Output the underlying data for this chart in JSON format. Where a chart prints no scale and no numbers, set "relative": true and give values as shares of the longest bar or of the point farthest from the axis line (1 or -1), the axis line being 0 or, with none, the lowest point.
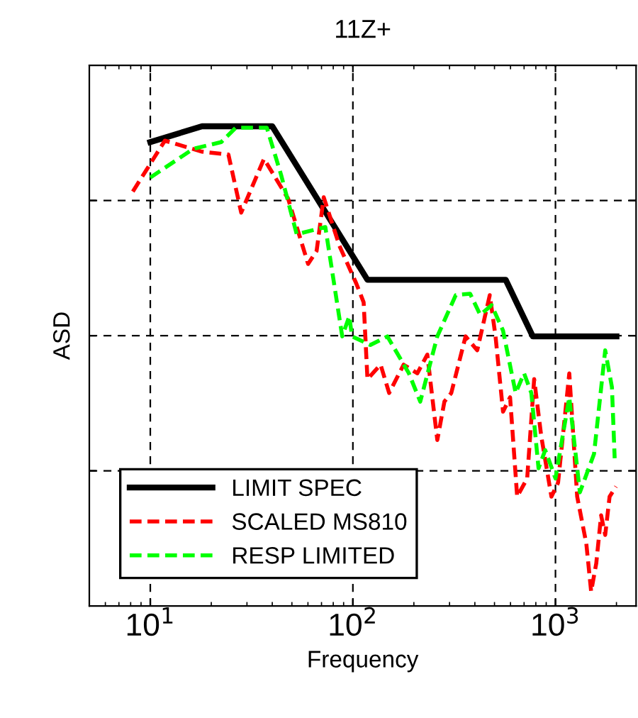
{
  "chart_data": {
    "type": "line",
    "title": "11Z+",
    "xlabel": "Frequency",
    "ylabel": "ASD",
    "relative": true,
    "log": "x",
    "xlim": [
      5,
      2500
    ],
    "xticks": [
      {
        "value": 10,
        "label": "10$^{1}$"
      },
      {
        "value": 100,
        "label": "10$^{2}$"
      },
      {
        "value": 1000,
        "label": "10$^{3}$"
      }
    ],
    "grid": true,
    "legend": "bottom left",
    "series": [
      {
        "name": "LIMIT SPEC",
        "color": "#000000",
        "line_style": "solid",
        "x": [
          10,
          18,
          40,
          118,
          568,
          773,
          2000
        ],
        "values": [
          0.967,
          1,
          1,
          0.68,
          0.68,
          0.562,
          0.562
        ]
      },
      {
        "name": "SCALED MS810",
        "color": "#ff0000",
        "line_style": "dashed",
        "x": [
          8.2,
          11.8,
          18,
          24.3,
          28.1,
          36.4,
          47.9,
          60.1,
          66.2,
          71.8,
          85.8,
          104,
          113,
          118,
          137,
          151,
          178,
          208,
          233,
          261,
          283,
          306,
          360,
          411,
          474,
          506,
          551,
          597,
          647,
          725,
          785,
          850,
          955,
          1030,
          1170,
          1280,
          1420,
          1500,
          1590,
          1680,
          1760,
          1850,
          1990
        ],
        "values": [
          0.864,
          0.97,
          0.947,
          0.941,
          0.82,
          0.932,
          0.849,
          0.713,
          0.74,
          0.852,
          0.751,
          0.672,
          0.633,
          0.473,
          0.503,
          0.444,
          0.503,
          0.485,
          0.524,
          0.346,
          0.426,
          0.444,
          0.562,
          0.533,
          0.648,
          0.562,
          0.405,
          0.435,
          0.228,
          0.266,
          0.473,
          0.355,
          0.228,
          0.257,
          0.485,
          0.228,
          0.13,
          0.03,
          0.089,
          0.189,
          0.148,
          0.228,
          0.249
        ]
      },
      {
        "name": "RESP LIMITED",
        "color": "#00ff00",
        "line_style": "dashed",
        "x": [
          10,
          16.3,
          22.4,
          26.4,
          37.6,
          44.2,
          52.8,
          73.1,
          88.6,
          96,
          99,
          122,
          148,
          189,
          215,
          261,
          322,
          379,
          425,
          484,
          551,
          636,
          700,
          760,
          825,
          890,
          1000,
          1170,
          1320,
          1550,
          1760,
          1900,
          1960
        ],
        "values": [
          0.893,
          0.953,
          0.967,
          0.997,
          0.997,
          0.899,
          0.775,
          0.79,
          0.562,
          0.604,
          0.562,
          0.544,
          0.562,
          0.485,
          0.426,
          0.562,
          0.648,
          0.651,
          0.607,
          0.627,
          0.574,
          0.444,
          0.485,
          0.444,
          0.287,
          0.325,
          0.266,
          0.435,
          0.237,
          0.317,
          0.533,
          0.456,
          0.308
        ]
      }
    ]
  }
}
